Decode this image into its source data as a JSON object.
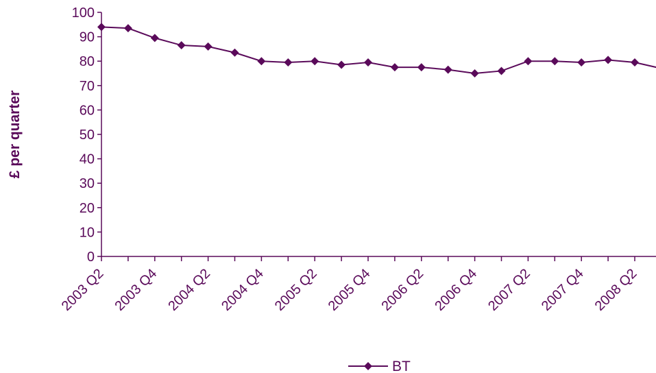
{
  "chart_data": {
    "type": "line",
    "title": "",
    "xlabel": "",
    "ylabel": "£ per quarter",
    "ylim": [
      0,
      100
    ],
    "yticks": [
      0,
      10,
      20,
      30,
      40,
      50,
      60,
      70,
      80,
      90,
      100
    ],
    "x": [
      "2003 Q2",
      "2003 Q3",
      "2003 Q4",
      "2004 Q1",
      "2004 Q2",
      "2004 Q3",
      "2004 Q4",
      "2005 Q1",
      "2005 Q2",
      "2005 Q3",
      "2005 Q4",
      "2006 Q1",
      "2006 Q2",
      "2006 Q3",
      "2006 Q4",
      "2007 Q1",
      "2007 Q2",
      "2007 Q3",
      "2007 Q4",
      "2008 Q1",
      "2008 Q2",
      "2008 Q3"
    ],
    "xtick_labels": [
      "2003 Q2",
      "2003 Q4",
      "2004 Q2",
      "2004 Q4",
      "2005 Q2",
      "2005 Q4",
      "2006 Q2",
      "2006 Q4",
      "2007 Q2",
      "2007 Q4",
      "2008 Q2"
    ],
    "series": [
      {
        "name": "BT",
        "color": "#5a0a5a",
        "values": [
          94,
          93.5,
          89.5,
          86.5,
          86,
          83.5,
          80,
          79.5,
          80,
          78.5,
          79.5,
          77.5,
          77.5,
          76.5,
          75,
          76,
          80,
          80,
          79.5,
          80.5,
          79.5,
          77
        ]
      }
    ],
    "grid": false,
    "legend_position": "bottom"
  }
}
